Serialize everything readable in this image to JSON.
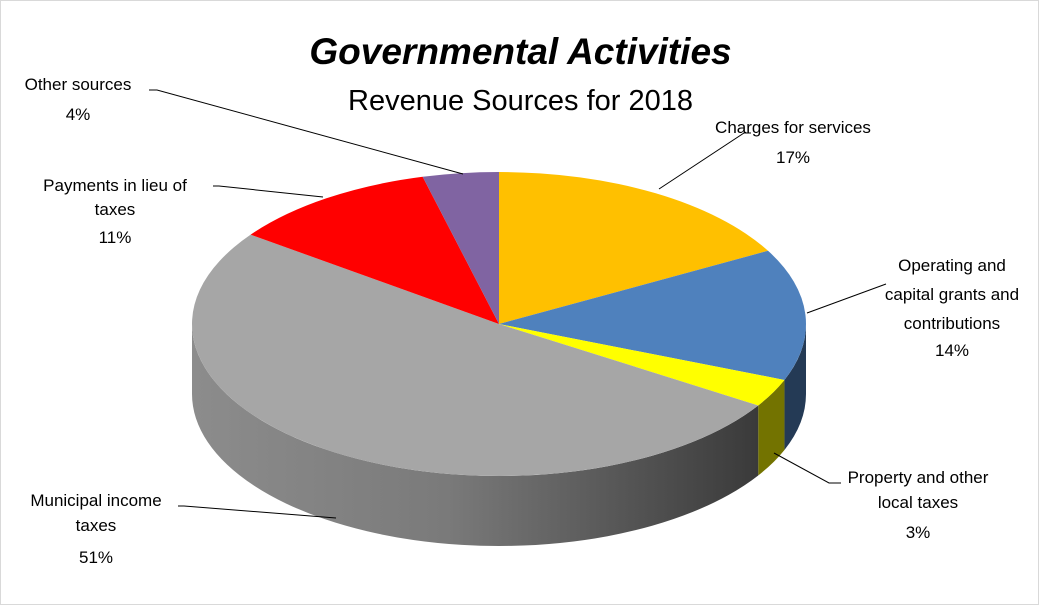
{
  "chart_data": {
    "type": "pie",
    "title": "Governmental Activities",
    "subtitle": "Revenue Sources for 2018",
    "categories": [
      "Charges for services",
      "Operating and capital grants and contributions",
      "Property and other local taxes",
      "Municipal income taxes",
      "Payments in lieu of taxes",
      "Other sources"
    ],
    "values": [
      17,
      14,
      3,
      51,
      11,
      4
    ],
    "unit": "%",
    "value_labels": [
      "17%",
      "14%",
      "3%",
      "51%",
      "11%",
      "4%"
    ],
    "label_lines": [
      [
        "Charges for services"
      ],
      [
        "Operating and",
        "capital grants and",
        "contributions"
      ],
      [
        "Property and other",
        "local taxes"
      ],
      [
        "Municipal income",
        "taxes"
      ],
      [
        "Payments in lieu of",
        "taxes"
      ],
      [
        "Other sources"
      ]
    ],
    "colors": [
      "#FFC000",
      "#4F81BD",
      "#FFFF00",
      "#A6A6A6",
      "#FF0000",
      "#8064A2"
    ],
    "style": "3d-pie",
    "start_angle": "12 o'clock, clockwise",
    "legend": "none, leader-line labels"
  }
}
